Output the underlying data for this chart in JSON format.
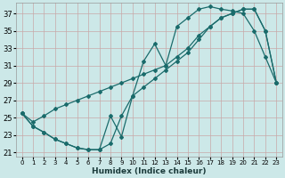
{
  "xlabel": "Humidex (Indice chaleur)",
  "bg_color": "#cce8e8",
  "grid_color": "#b8d8d8",
  "line_color": "#1a6b6b",
  "xlim": [
    -0.5,
    23.5
  ],
  "ylim": [
    20.5,
    38.2
  ],
  "xticks": [
    0,
    1,
    2,
    3,
    4,
    5,
    6,
    7,
    8,
    9,
    10,
    11,
    12,
    13,
    14,
    15,
    16,
    17,
    18,
    19,
    20,
    21,
    22,
    23
  ],
  "yticks": [
    21,
    23,
    25,
    27,
    29,
    31,
    33,
    35,
    37
  ],
  "line1_x": [
    0,
    1,
    2,
    3,
    4,
    5,
    6,
    7,
    8,
    9,
    10,
    11,
    12,
    13,
    14,
    15,
    16,
    17,
    18,
    19,
    20,
    21,
    22,
    23
  ],
  "line1_y": [
    25.5,
    24.0,
    23.3,
    22.5,
    22.0,
    21.5,
    21.3,
    21.3,
    25.2,
    22.8,
    27.5,
    31.5,
    33.5,
    31.0,
    35.5,
    36.5,
    37.5,
    37.8,
    37.5,
    37.3,
    37.0,
    35.0,
    32.0,
    29.0
  ],
  "line2_x": [
    0,
    1,
    2,
    3,
    4,
    5,
    6,
    7,
    8,
    9,
    10,
    11,
    12,
    13,
    14,
    15,
    16,
    17,
    18,
    19,
    20,
    21,
    22,
    23
  ],
  "line2_y": [
    25.5,
    24.5,
    25.2,
    26.0,
    26.5,
    27.0,
    27.5,
    28.0,
    28.5,
    29.0,
    29.5,
    30.0,
    30.5,
    31.0,
    32.0,
    33.0,
    34.5,
    35.5,
    36.5,
    37.0,
    37.5,
    37.5,
    35.0,
    29.0
  ],
  "line3_x": [
    0,
    1,
    2,
    3,
    4,
    5,
    6,
    7,
    8,
    9,
    10,
    11,
    12,
    13,
    14,
    15,
    16,
    17,
    18,
    19,
    20,
    21,
    22,
    23
  ],
  "line3_y": [
    25.5,
    24.0,
    23.3,
    22.5,
    22.0,
    21.5,
    21.3,
    21.3,
    22.0,
    25.2,
    27.5,
    28.5,
    29.5,
    30.5,
    31.5,
    32.5,
    34.0,
    35.5,
    36.5,
    37.0,
    37.5,
    37.5,
    35.0,
    29.0
  ]
}
